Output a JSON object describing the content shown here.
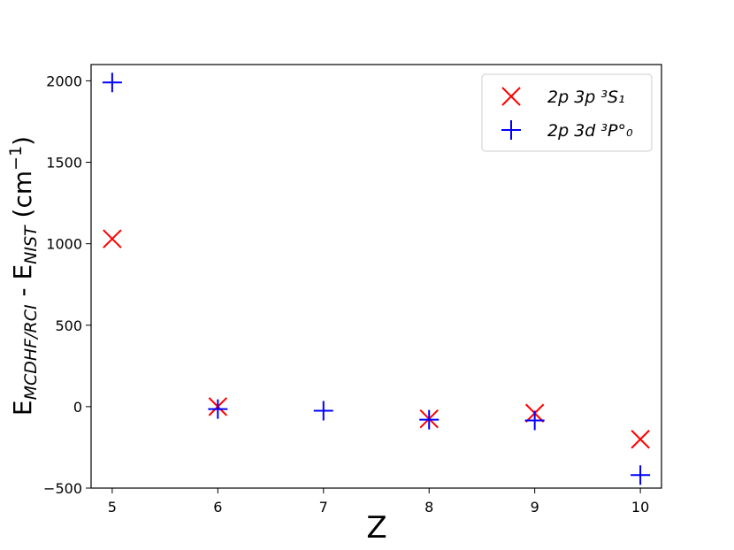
{
  "chart_data": {
    "type": "scatter",
    "x_label": "Z",
    "y_label": [
      "E",
      "MCDHF/RCI",
      " - E",
      "NIST",
      " (cm",
      "−1",
      ")"
    ],
    "series": [
      {
        "name": "2p 3p ³S₁",
        "color": "#ff0000",
        "marker": "x",
        "x": [
          5,
          6,
          8,
          9,
          10
        ],
        "values": [
          1030,
          0,
          -75,
          -40,
          -200
        ]
      },
      {
        "name": "2p 3d ³P°₀",
        "color": "#0000ff",
        "marker": "+",
        "x": [
          5,
          6,
          7,
          8,
          9,
          10
        ],
        "values": [
          1990,
          -15,
          -25,
          -80,
          -85,
          -420
        ]
      }
    ],
    "xlim": [
      4.8,
      10.2
    ],
    "xticks": [
      5,
      6,
      7,
      8,
      9,
      10
    ],
    "ylim": [
      -500,
      2100
    ],
    "yticks": [
      {
        "value": -500,
        "label": "−500"
      },
      0,
      500,
      1000,
      1500,
      2000
    ],
    "legend": "upper right"
  }
}
